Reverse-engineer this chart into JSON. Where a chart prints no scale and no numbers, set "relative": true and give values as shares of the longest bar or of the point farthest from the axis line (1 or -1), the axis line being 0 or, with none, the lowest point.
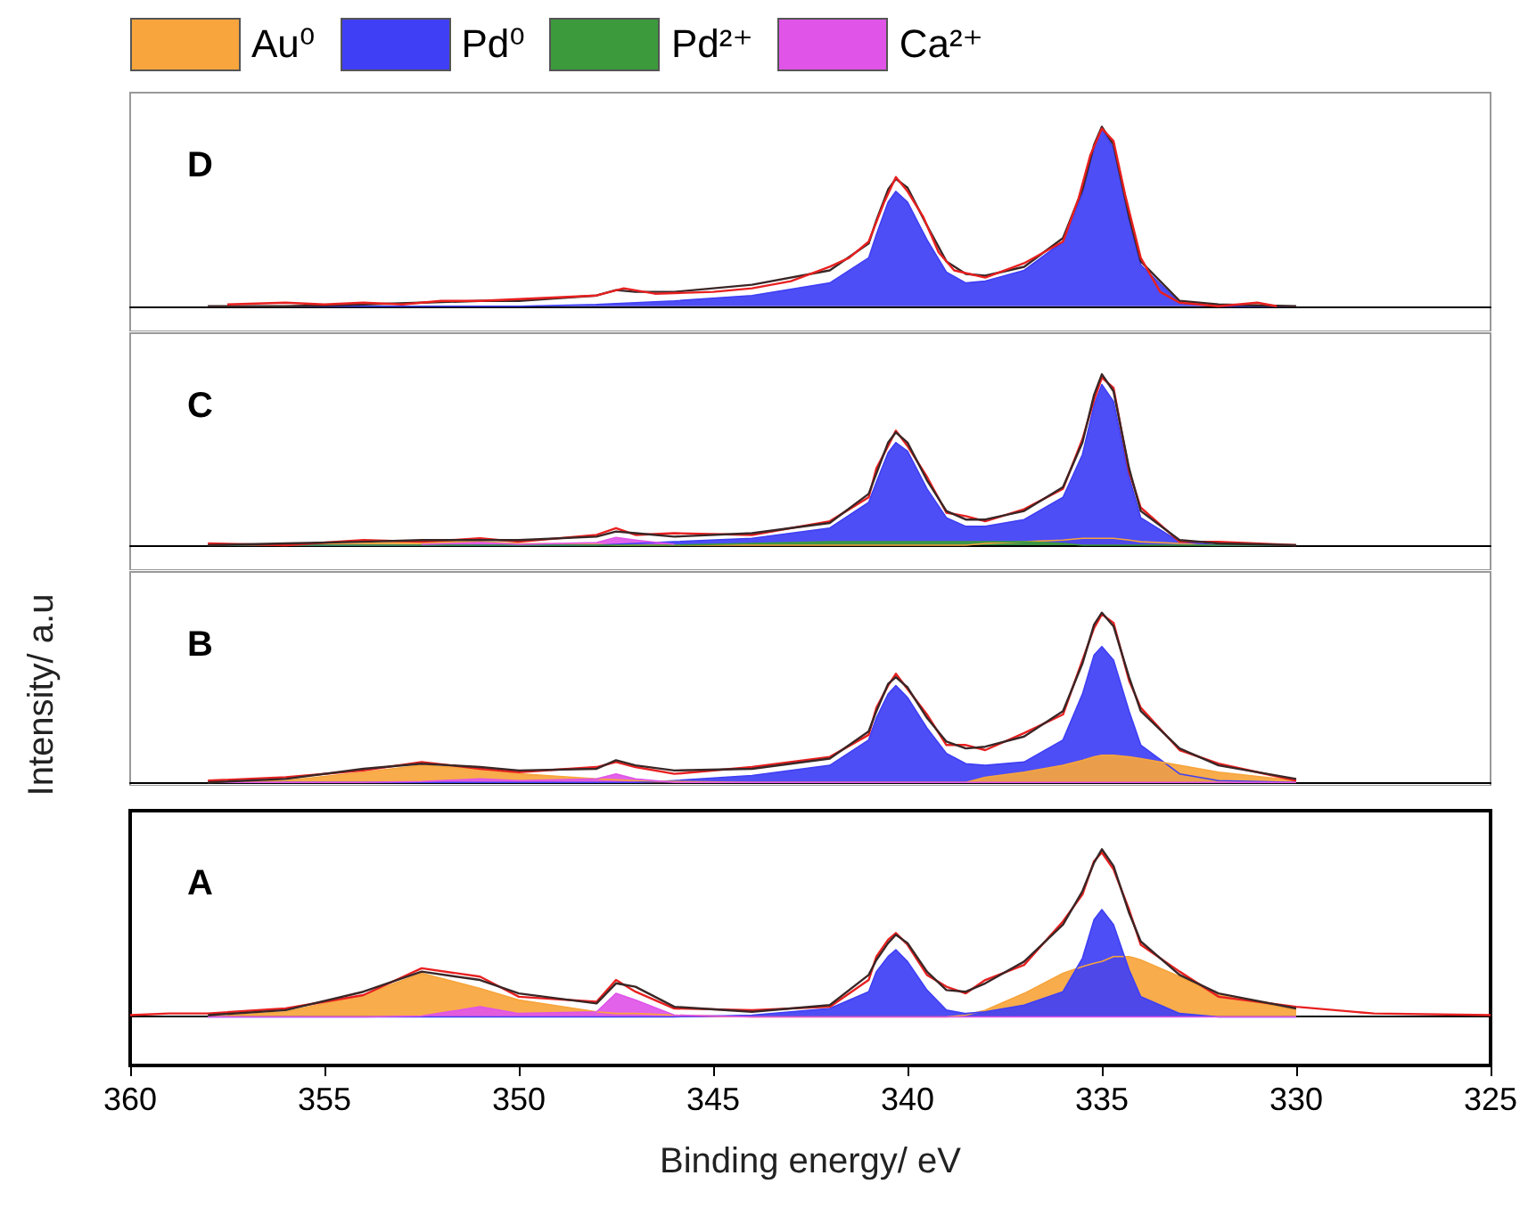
{
  "chart_data": [
    {
      "type": "area",
      "title": "D",
      "relative": true,
      "tick_labels": false,
      "xlim": [
        360,
        325
      ],
      "xticks": [
        360,
        355,
        350,
        345,
        340,
        335,
        330,
        325
      ],
      "x": [
        358,
        356,
        354,
        352.5,
        351,
        350,
        348,
        347.5,
        347,
        346,
        344,
        342,
        341,
        340.8,
        340.5,
        340.3,
        340,
        339.5,
        339,
        338.5,
        338,
        337,
        336,
        335.5,
        335.2,
        335,
        334.7,
        334.3,
        334,
        333,
        332,
        330
      ],
      "series": [
        {
          "color": "#3f3ff5",
          "values": [
            0,
            0,
            0,
            0,
            0,
            0,
            0.01,
            0.015,
            0.02,
            0.03,
            0.06,
            0.13,
            0.27,
            0.4,
            0.58,
            0.64,
            0.58,
            0.37,
            0.19,
            0.13,
            0.14,
            0.2,
            0.36,
            0.63,
            0.88,
            0.99,
            0.88,
            0.48,
            0.23,
            0.02,
            0,
            0
          ]
        },
        {
          "type": "line",
          "color": "#3a2626",
          "values": [
            0,
            0,
            0.01,
            0.02,
            0.03,
            0.03,
            0.06,
            0.09,
            0.08,
            0.08,
            0.12,
            0.2,
            0.35,
            0.48,
            0.65,
            0.71,
            0.66,
            0.45,
            0.25,
            0.18,
            0.17,
            0.22,
            0.38,
            0.65,
            0.9,
            1.0,
            0.9,
            0.5,
            0.25,
            0.03,
            0.01,
            0
          ]
        },
        {
          "type": "line",
          "color": "#e82020",
          "x": [
            357.5,
            356,
            355,
            354,
            353,
            352,
            351,
            350,
            349,
            348,
            347.3,
            346.5,
            345,
            344,
            343,
            342,
            341.5,
            341,
            340.6,
            340.3,
            340,
            339.6,
            339.2,
            338.8,
            338,
            337,
            336,
            335.6,
            335.3,
            335,
            334.7,
            334.4,
            334,
            333.5,
            333,
            332,
            331.5,
            331,
            330.5
          ],
          "values": [
            0.01,
            0.02,
            0.01,
            0.02,
            0.01,
            0.03,
            0.03,
            0.04,
            0.05,
            0.06,
            0.1,
            0.07,
            0.08,
            0.1,
            0.14,
            0.22,
            0.27,
            0.36,
            0.58,
            0.72,
            0.64,
            0.5,
            0.3,
            0.2,
            0.16,
            0.24,
            0.36,
            0.6,
            0.84,
            0.99,
            0.92,
            0.62,
            0.27,
            0.08,
            0.02,
            0,
            0.01,
            0.02,
            0
          ]
        }
      ]
    },
    {
      "type": "area",
      "title": "C",
      "relative": true,
      "tick_labels": false,
      "legend": "top",
      "xlim": [
        360,
        325
      ],
      "xticks": [
        360,
        355,
        350,
        345,
        340,
        335,
        330,
        325
      ],
      "x": [
        358,
        356,
        354,
        352.5,
        351,
        350,
        348,
        347.5,
        347,
        346,
        344,
        342,
        341,
        340.8,
        340.5,
        340.3,
        340,
        339.5,
        339,
        338.5,
        338,
        337,
        336,
        335.5,
        335.2,
        335,
        334.7,
        334.3,
        334,
        333,
        332,
        330
      ],
      "series": [
        {
          "name": "Au⁰",
          "color": "#f7a53c",
          "values": [
            0,
            0.005,
            0.01,
            0.02,
            0.02,
            0.01,
            0.005,
            0,
            0,
            0,
            0,
            0,
            0,
            0,
            0,
            0,
            0,
            0,
            0,
            0,
            0.01,
            0.02,
            0.03,
            0.04,
            0.04,
            0.04,
            0.04,
            0.03,
            0.02,
            0.01,
            0,
            0
          ]
        },
        {
          "name": "Pd⁰",
          "color": "#3f3ff5",
          "values": [
            0,
            0,
            0,
            0,
            0,
            0,
            0,
            0.005,
            0.01,
            0.02,
            0.04,
            0.1,
            0.25,
            0.37,
            0.54,
            0.6,
            0.55,
            0.33,
            0.16,
            0.11,
            0.11,
            0.15,
            0.28,
            0.53,
            0.82,
            0.94,
            0.84,
            0.4,
            0.16,
            0.02,
            0,
            0
          ]
        },
        {
          "name": "Pd²⁺",
          "color": "#3c9a3c",
          "values": [
            0,
            0,
            0,
            0,
            0,
            0,
            0,
            0,
            0,
            0,
            0.01,
            0.02,
            0.02,
            0.02,
            0.02,
            0.02,
            0.02,
            0.02,
            0.02,
            0.02,
            0.02,
            0.02,
            0.01,
            0,
            0,
            0,
            0,
            0,
            0,
            0,
            0,
            0
          ]
        },
        {
          "name": "Ca²⁺",
          "color": "#e055e8",
          "x": [
            352.5,
            351,
            350,
            348,
            347.5,
            347,
            346
          ],
          "values": [
            0.005,
            0.015,
            0.005,
            0.015,
            0.045,
            0.03,
            0.005
          ]
        },
        {
          "type": "line",
          "color": "#e82020",
          "values": [
            0.01,
            0,
            0.03,
            0.02,
            0.04,
            0.02,
            0.06,
            0.1,
            0.06,
            0.07,
            0.06,
            0.14,
            0.28,
            0.45,
            0.58,
            0.67,
            0.58,
            0.4,
            0.19,
            0.17,
            0.14,
            0.21,
            0.33,
            0.62,
            0.85,
            0.98,
            0.92,
            0.43,
            0.22,
            0.02,
            0.02,
            0
          ]
        },
        {
          "type": "line",
          "color": "#3a2626",
          "values": [
            0,
            0.01,
            0.02,
            0.03,
            0.03,
            0.03,
            0.05,
            0.08,
            0.07,
            0.05,
            0.07,
            0.13,
            0.3,
            0.42,
            0.6,
            0.66,
            0.6,
            0.38,
            0.2,
            0.15,
            0.15,
            0.2,
            0.34,
            0.6,
            0.88,
            1.0,
            0.9,
            0.45,
            0.2,
            0.03,
            0.01,
            0
          ]
        }
      ]
    },
    {
      "type": "area",
      "title": "B",
      "ylabel": "Intensity/ a.u",
      "relative": true,
      "tick_labels": false,
      "xlim": [
        360,
        325
      ],
      "xticks": [
        360,
        355,
        350,
        345,
        340,
        335,
        330,
        325
      ],
      "x": [
        358,
        356,
        354,
        352.5,
        351,
        350,
        348,
        347.5,
        347,
        346,
        344,
        342,
        341,
        340.8,
        340.5,
        340.3,
        340,
        339.5,
        339,
        338.5,
        338,
        337,
        336,
        335.5,
        335.2,
        335,
        334.7,
        334.3,
        334,
        333,
        332,
        330
      ],
      "series": [
        {
          "color": "#3f3ff5",
          "values": [
            0,
            0,
            0,
            0,
            0,
            0,
            0,
            0,
            0,
            0.01,
            0.04,
            0.1,
            0.25,
            0.38,
            0.52,
            0.57,
            0.5,
            0.32,
            0.17,
            0.11,
            0.1,
            0.12,
            0.25,
            0.52,
            0.75,
            0.8,
            0.72,
            0.42,
            0.22,
            0.05,
            0.01,
            0
          ]
        },
        {
          "color": "#f7a53c",
          "values": [
            0,
            0.01,
            0.06,
            0.1,
            0.08,
            0.05,
            0.02,
            0.015,
            0.01,
            0.005,
            0,
            0,
            0,
            0,
            0,
            0,
            0,
            0,
            0,
            0,
            0.03,
            0.06,
            0.1,
            0.13,
            0.15,
            0.16,
            0.16,
            0.15,
            0.14,
            0.1,
            0.06,
            0.01
          ]
        },
        {
          "color": "#e055e8",
          "values": [
            0,
            0,
            0,
            0.005,
            0.02,
            0.01,
            0.02,
            0.05,
            0.02,
            0,
            0,
            0,
            0,
            0,
            0,
            0,
            0,
            0,
            0,
            0,
            0,
            0,
            0,
            0,
            0,
            0,
            0,
            0,
            0,
            0,
            0,
            0
          ]
        },
        {
          "type": "line",
          "color": "#e82020",
          "values": [
            0.01,
            0.03,
            0.07,
            0.12,
            0.08,
            0.06,
            0.09,
            0.12,
            0.09,
            0.05,
            0.09,
            0.15,
            0.28,
            0.44,
            0.57,
            0.64,
            0.55,
            0.4,
            0.22,
            0.22,
            0.19,
            0.29,
            0.4,
            0.72,
            0.91,
            0.99,
            0.94,
            0.6,
            0.44,
            0.19,
            0.11,
            0.01
          ]
        },
        {
          "type": "line",
          "color": "#3a2626",
          "values": [
            0,
            0.02,
            0.08,
            0.11,
            0.09,
            0.07,
            0.08,
            0.13,
            0.1,
            0.07,
            0.08,
            0.14,
            0.3,
            0.42,
            0.58,
            0.62,
            0.56,
            0.38,
            0.24,
            0.2,
            0.21,
            0.27,
            0.42,
            0.7,
            0.93,
            1.0,
            0.92,
            0.62,
            0.42,
            0.2,
            0.1,
            0.02
          ]
        }
      ]
    },
    {
      "type": "area",
      "title": "A",
      "xlabel": "Binding energy/ eV",
      "relative": true,
      "tick_labels": "x",
      "xlim": [
        360,
        325
      ],
      "xticks": [
        360,
        355,
        350,
        345,
        340,
        335,
        330,
        325
      ],
      "x": [
        358,
        356,
        354,
        352.5,
        351,
        350,
        348,
        347.5,
        347,
        346,
        344,
        342,
        341,
        340.8,
        340.5,
        340.3,
        340,
        339.5,
        339,
        338.5,
        338,
        337,
        336,
        335.5,
        335.2,
        335,
        334.7,
        334.3,
        334,
        333,
        332,
        330
      ],
      "series": [
        {
          "color": "#f7a53c",
          "values": [
            0,
            0.03,
            0.13,
            0.26,
            0.17,
            0.1,
            0.03,
            0.02,
            0.02,
            0.01,
            0,
            0,
            0,
            0,
            0,
            0,
            0,
            0,
            0,
            0.01,
            0.04,
            0.14,
            0.26,
            0.3,
            0.32,
            0.33,
            0.36,
            0.36,
            0.34,
            0.24,
            0.13,
            0.04
          ]
        },
        {
          "color": "#3f3ff5",
          "values": [
            0,
            0,
            0,
            0,
            0,
            0,
            0,
            0,
            0,
            0,
            0.01,
            0.05,
            0.15,
            0.27,
            0.36,
            0.4,
            0.33,
            0.16,
            0.04,
            0.02,
            0.03,
            0.07,
            0.15,
            0.35,
            0.58,
            0.64,
            0.55,
            0.28,
            0.12,
            0.02,
            0,
            0
          ]
        },
        {
          "color": "#e055e8",
          "values": [
            0,
            0,
            0,
            0.005,
            0.06,
            0.02,
            0.03,
            0.14,
            0.1,
            0.01,
            0,
            0,
            0,
            0,
            0,
            0,
            0,
            0,
            0,
            0,
            0,
            0,
            0,
            0,
            0,
            0,
            0,
            0,
            0,
            0,
            0,
            0
          ]
        },
        {
          "type": "line",
          "color": "#e82020",
          "x": [
            360,
            359,
            358,
            356,
            354,
            352.5,
            351,
            350,
            348,
            347.5,
            347,
            346,
            344,
            342,
            341,
            340.8,
            340.5,
            340.3,
            340,
            339.5,
            339,
            338.5,
            338,
            337,
            336,
            335.5,
            335.2,
            335,
            334.7,
            334.3,
            334,
            333,
            332,
            330,
            328,
            325
          ],
          "values": [
            0.01,
            0.02,
            0.02,
            0.05,
            0.13,
            0.29,
            0.24,
            0.12,
            0.09,
            0.22,
            0.15,
            0.05,
            0.04,
            0.06,
            0.22,
            0.36,
            0.46,
            0.5,
            0.43,
            0.25,
            0.18,
            0.14,
            0.22,
            0.31,
            0.57,
            0.73,
            0.93,
            0.98,
            0.88,
            0.64,
            0.43,
            0.27,
            0.12,
            0.06,
            0.02,
            0.01
          ]
        },
        {
          "type": "line",
          "color": "#3a2626",
          "values": [
            0.01,
            0.04,
            0.15,
            0.27,
            0.22,
            0.14,
            0.08,
            0.2,
            0.18,
            0.06,
            0.03,
            0.07,
            0.25,
            0.34,
            0.44,
            0.49,
            0.44,
            0.27,
            0.16,
            0.15,
            0.2,
            0.33,
            0.55,
            0.75,
            0.92,
            1.0,
            0.9,
            0.62,
            0.45,
            0.25,
            0.14,
            0.05
          ]
        }
      ]
    }
  ]
}
